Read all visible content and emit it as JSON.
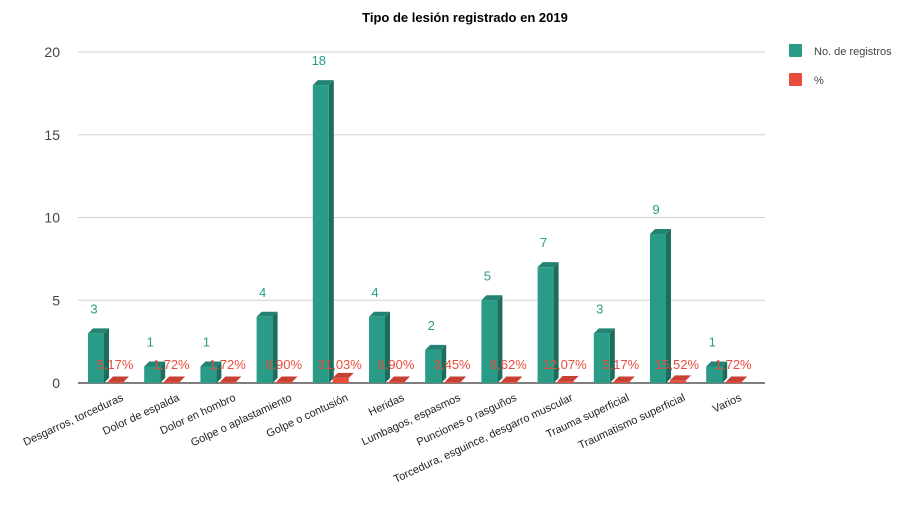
{
  "chart_data": {
    "type": "bar",
    "title": "Tipo de lesión registrado en 2019",
    "xlabel": "",
    "ylabel": "",
    "ylim": [
      0,
      20
    ],
    "yticks": [
      0,
      5,
      10,
      15,
      20
    ],
    "grid": true,
    "legend_position": "top-right",
    "categories": [
      "Desgarros, torceduras",
      "Dolor de espalda",
      "Dolor en hombro",
      "Golpe o aplastamiento",
      "Golpe o contusión",
      "Heridas",
      "Lumbagos, espasmos",
      "Punciones o rasguños",
      "Torcedura, esguince, desgarro muscular",
      "Trauma superficial",
      "Traumatismo superficial",
      "Varios"
    ],
    "series": [
      {
        "name": "No. de registros",
        "color": "#2a9b87",
        "values": [
          3,
          1,
          1,
          4,
          18,
          4,
          2,
          5,
          7,
          3,
          9,
          1
        ],
        "labels": [
          "3",
          "1",
          "1",
          "4",
          "18",
          "4",
          "2",
          "5",
          "7",
          "3",
          "9",
          "1"
        ]
      },
      {
        "name": "%",
        "color": "#e84c3d",
        "values": [
          0.0517,
          0.0172,
          0.0172,
          0.069,
          0.3103,
          0.069,
          0.0345,
          0.0862,
          0.1207,
          0.0517,
          0.1552,
          0.0172
        ],
        "labels": [
          "5,17%",
          "1,72%",
          "1,72%",
          "6,90%",
          "31,03%",
          "6,90%",
          "3,45%",
          "8,62%",
          "12,07%",
          "5,17%",
          "15,52%",
          "1,72%"
        ]
      }
    ]
  }
}
